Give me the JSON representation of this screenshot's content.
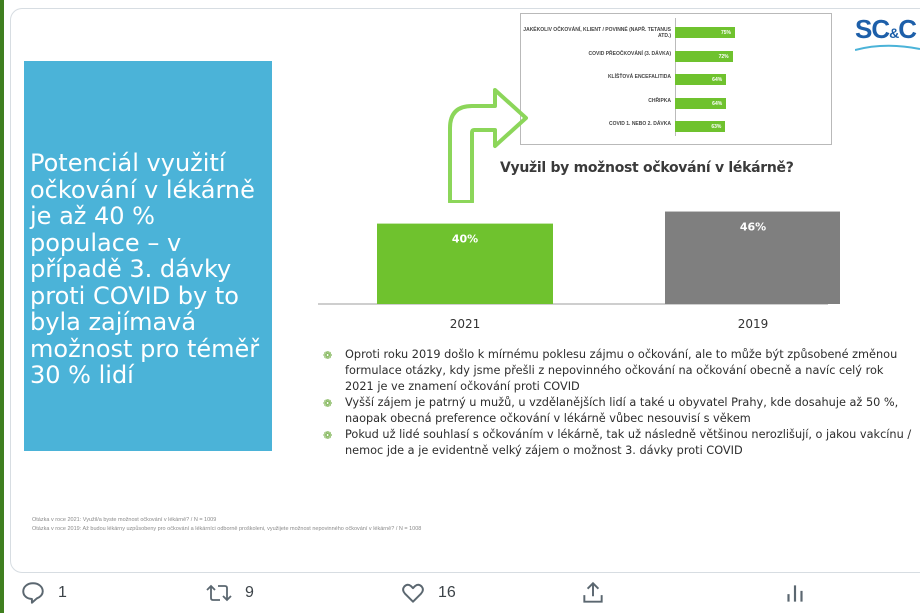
{
  "slide": {
    "headline": "Potenciál využití očkování v lékárně je až 40 % populace – v případě 3. dávky proti COVID by to byla zajímavá možnost pro téměř 30 % lidí",
    "logo": {
      "main": "SC",
      "amp": "&",
      "tail": "C"
    },
    "mini_chart_rows": [
      {
        "label": "JAKÉKOLIV OČKOVÁNÍ, KLIENT / POVINNÉ (NAPŘ. TETANUS ATD.)",
        "value": "75%",
        "fraction": 0.75
      },
      {
        "label": "COVID PŘEOČKOVÁNÍ (3. DÁVKA)",
        "value": "72%",
        "fraction": 0.72
      },
      {
        "label": "KLÍŠŤOVÁ ENCEFALITIDA",
        "value": "64%",
        "fraction": 0.64
      },
      {
        "label": "CHŘIPKA",
        "value": "64%",
        "fraction": 0.64
      },
      {
        "label": "COVID 1. NEBO 2. DÁVKA",
        "value": "63%",
        "fraction": 0.63
      }
    ],
    "bullets": [
      "Oproti roku 2019 došlo k mírnému poklesu zájmu o očkování, ale to může být způsobené změnou formulace otázky, kdy jsme přešli z nepovinného očkování na očkování obecně a navíc celý rok 2021 je ve znamení očkování proti COVID",
      "Vyšší zájem je patrný u mužů, u vzdělanějších lidí a také u obyvatel Prahy, kde dosahuje až 50 %, naopak obecná preference očkování v lékárně vůbec nesouvisí s věkem",
      "Pokud už lidé souhlasí s očkováním v lékárně, tak už následně většinou nerozlišují, o jakou vakcínu / nemoc jde a je evidentně velký zájem o možnost 3. dávky proti COVID"
    ],
    "footnotes": [
      "Otázka v roce 2021: Využil/a byste  možnost očkování v lékárně? / N =  1009",
      "Otázka v roce 2019:  Až budou lékárny uzpůsobeny pro očkování a lékárníci odborně proškoleni, využijete možnost nepovinného očkování v lékárně?  / N =  1008"
    ]
  },
  "chart_data": {
    "type": "bar",
    "title": "Využil by možnost očkování v lékárně?",
    "categories": [
      "2021",
      "2019"
    ],
    "values": [
      40,
      46
    ],
    "labels": [
      "40%",
      "46%"
    ],
    "colors": [
      "#6fc22e",
      "#7f7f7f"
    ],
    "ylim": [
      0,
      50
    ]
  },
  "actions": {
    "reply_count": "1",
    "retweet_count": "9",
    "like_count": "16"
  }
}
